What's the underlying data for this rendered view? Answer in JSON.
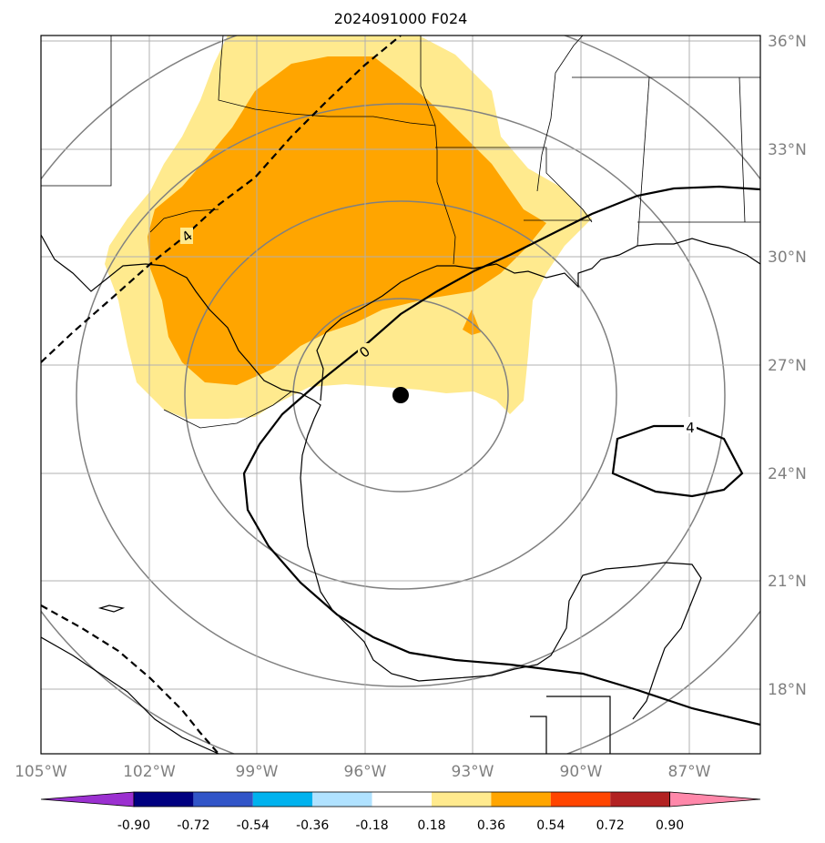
{
  "title": "2024091000 F024",
  "longitude_ticks": [
    "105°W",
    "102°W",
    "99°W",
    "96°W",
    "93°W",
    "90°W",
    "87°W"
  ],
  "latitude_ticks": [
    "36°N",
    "33°N",
    "30°N",
    "27°N",
    "24°N",
    "21°N",
    "18°N"
  ],
  "map": {
    "lon_range": [
      -105,
      -85
    ],
    "lat_range": [
      16,
      36
    ],
    "grid": true,
    "storm_center": {
      "lat": 26.2,
      "lon": -95.0
    },
    "range_rings": 4
  },
  "colorbar": {
    "levels": [
      "-0.90",
      "-0.72",
      "-0.54",
      "-0.36",
      "-0.18",
      "0.18",
      "0.36",
      "0.54",
      "0.72",
      "0.90"
    ],
    "colors": [
      "#9b30d0",
      "#000080",
      "#3155c8",
      "#00b2ee",
      "#b0e2ff",
      "#ffffff",
      "#ffea8e",
      "#ffa500",
      "#ff4500",
      "#b22222",
      "#ff88aa"
    ]
  },
  "contours": [
    {
      "value": "4",
      "style": "dashed"
    },
    {
      "value": "0",
      "style": "solid"
    },
    {
      "value": "4",
      "style": "solid"
    }
  ]
}
